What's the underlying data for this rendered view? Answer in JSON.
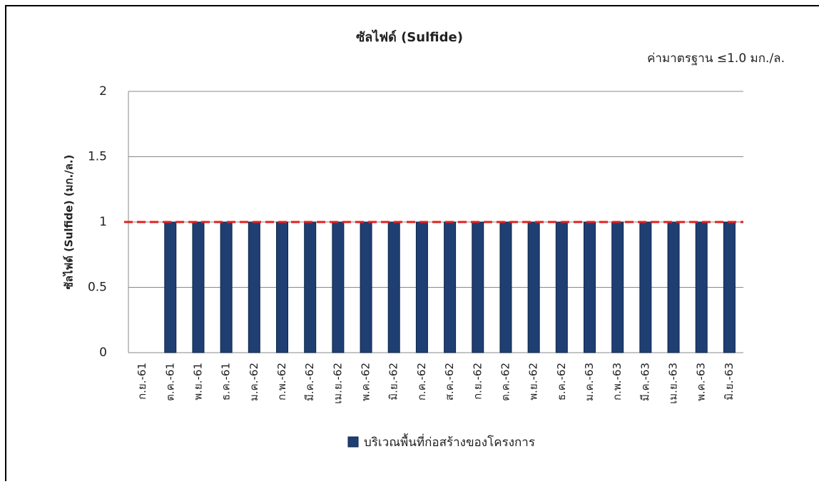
{
  "chart_data": {
    "type": "bar",
    "title": "ซัลไฟด์ (Sulfide)",
    "annotation": "ค่ามาตรฐาน ≤1.0 มก./ล.",
    "ylabel": "ซัลไฟด์ (Sulfide)  (มก./ล.)",
    "categories": [
      "ก.ย.-61",
      "ต.ค.-61",
      "พ.ย.-61",
      "ธ.ค.-61",
      "ม.ค.-62",
      "ก.พ.-62",
      "มี.ค.-62",
      "เม.ย.-62",
      "พ.ค.-62",
      "มิ.ย.-62",
      "ก.ค.-62",
      "ส.ค.-62",
      "ก.ย.-62",
      "ต.ค.-62",
      "พ.ย.-62",
      "ธ.ค.-62",
      "ม.ค.-63",
      "ก.พ.-63",
      "มี.ค.-63",
      "เม.ย.-63",
      "พ.ค.-63",
      "มิ.ย.-63"
    ],
    "series": [
      {
        "name": "บริเวณพื้นที่ก่อสร้างของโครงการ",
        "color": "#1f3f73",
        "values": [
          null,
          1,
          1,
          1,
          1,
          1,
          1,
          1,
          1,
          1,
          1,
          1,
          1,
          1,
          1,
          1,
          1,
          1,
          1,
          1,
          1,
          1
        ]
      }
    ],
    "standard_line": {
      "value": 1,
      "color": "#e02020"
    },
    "ylim": [
      0,
      2
    ],
    "yticks": [
      0,
      0.5,
      1,
      1.5,
      2
    ],
    "grid": true,
    "legend": "bottom"
  }
}
